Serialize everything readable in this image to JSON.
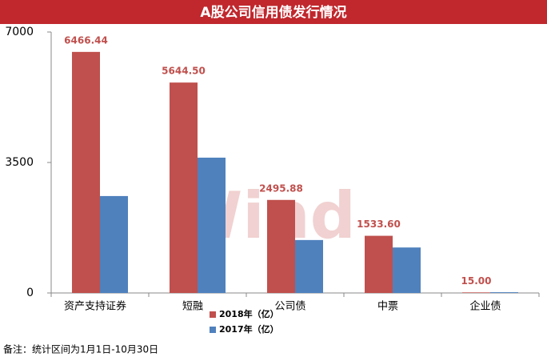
{
  "chart_data": {
    "type": "bar",
    "title": "A股公司信用债发行情况",
    "categories": [
      "资产支持证券",
      "短融",
      "公司债",
      "中票",
      "企业债"
    ],
    "series": [
      {
        "name": "2018年（亿）",
        "color": "#c0504d",
        "values": [
          6466.44,
          5644.5,
          2495.88,
          1533.6,
          15
        ],
        "value_labels": [
          "6466.44",
          "5644.50",
          "2495.88",
          "1533.60",
          "15.00"
        ]
      },
      {
        "name": "2017年（亿）",
        "color": "#4f81bd",
        "values": [
          2600,
          3630,
          1420,
          1220,
          20
        ]
      }
    ],
    "ylim": [
      0,
      7000
    ],
    "yticks": [
      0,
      3500,
      7000
    ],
    "grid": false,
    "watermark": "Wind",
    "note": "备注：统计区间为1月1日-10月30日"
  }
}
